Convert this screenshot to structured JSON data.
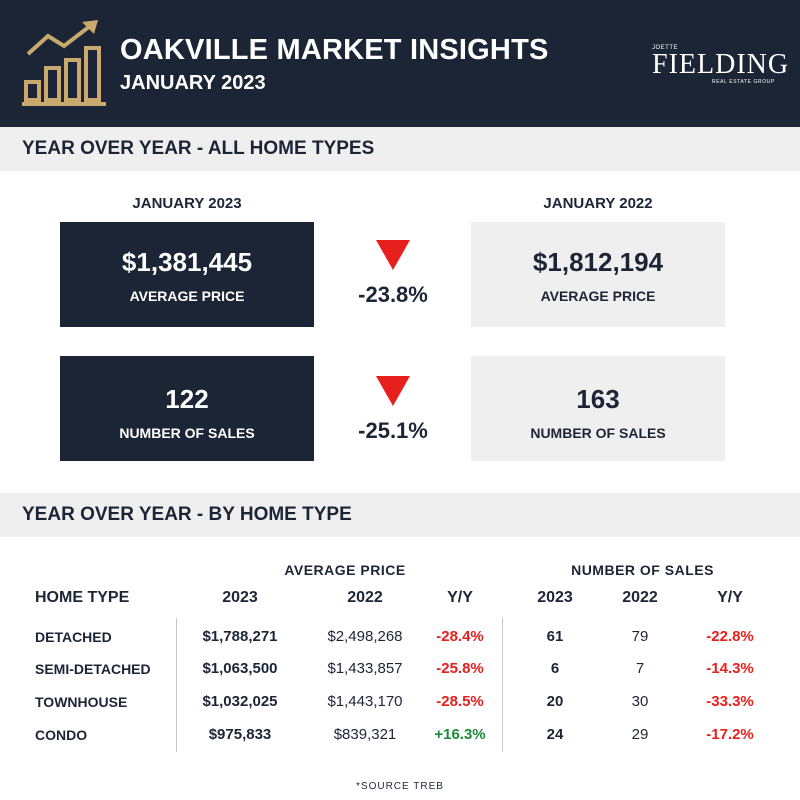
{
  "header": {
    "title": "OAKVILLE MARKET INSIGHTS",
    "subtitle": "JANUARY 2023",
    "brand_small": "JOETTE",
    "brand_main": "FIELDING",
    "brand_tag": "REAL ESTATE GROUP",
    "logo_icon": "bar-chart-rising-arrow-icon",
    "accent_color": "#c9a96e",
    "navy_color": "#1c2536"
  },
  "section1": {
    "title": "YEAR OVER YEAR - ALL HOME TYPES",
    "left_label": "JANUARY 2023",
    "right_label": "JANUARY 2022",
    "price": {
      "current": "$1,381,445",
      "previous": "$1,812,194",
      "label": "AVERAGE PRICE",
      "change": "-23.8%"
    },
    "sales": {
      "current": "122",
      "previous": "163",
      "label": "NUMBER OF SALES",
      "change": "-25.1%"
    },
    "down_icon": "red-down-triangle-icon"
  },
  "section2": {
    "title": "YEAR OVER YEAR - BY HOME TYPE",
    "group_price": "AVERAGE PRICE",
    "group_sales": "NUMBER OF SALES",
    "col_type": "HOME TYPE",
    "col_2023": "2023",
    "col_2022": "2022",
    "col_yy": "Y/Y",
    "rows": [
      {
        "type": "DETACHED",
        "price_2023": "$1,788,271",
        "price_2022": "$2,498,268",
        "price_yy": "-28.4%",
        "sales_2023": "61",
        "sales_2022": "79",
        "sales_yy": "-22.8%"
      },
      {
        "type": "SEMI-DETACHED",
        "price_2023": "$1,063,500",
        "price_2022": "$1,433,857",
        "price_yy": "-25.8%",
        "sales_2023": "6",
        "sales_2022": "7",
        "sales_yy": "-14.3%"
      },
      {
        "type": "TOWNHOUSE",
        "price_2023": "$1,032,025",
        "price_2022": "$1,443,170",
        "price_yy": "-28.5%",
        "sales_2023": "20",
        "sales_2022": "30",
        "sales_yy": "-33.3%"
      },
      {
        "type": "CONDO",
        "price_2023": "$975,833",
        "price_2022": "$839,321",
        "price_yy": "+16.3%",
        "sales_2023": "24",
        "sales_2022": "29",
        "sales_yy": "-17.2%"
      }
    ]
  },
  "footer": {
    "source": "*SOURCE TREB"
  }
}
